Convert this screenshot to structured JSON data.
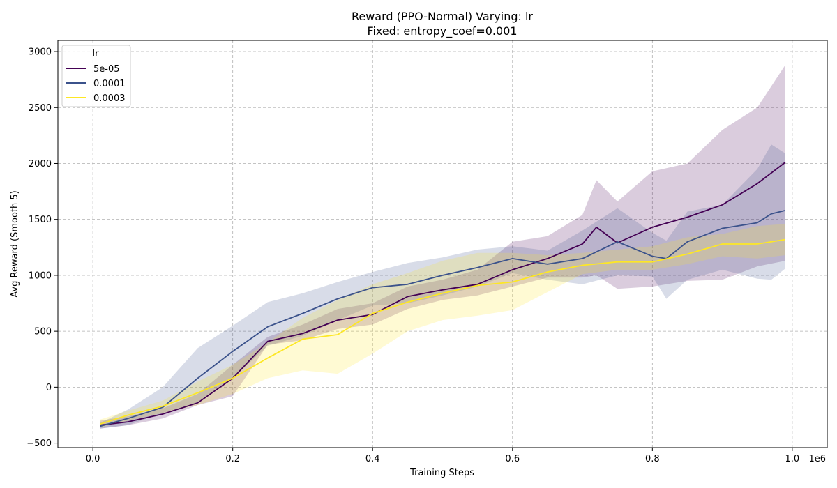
{
  "chart_data": {
    "type": "line",
    "title": "Reward (PPO-Normal) Varying: lr",
    "subtitle": "Fixed: entropy_coef=0.001",
    "xlabel": "Training Steps",
    "ylabel": "Avg Reward (Smooth 5)",
    "x_offset_label": "1e6",
    "xlim": [
      -0.05,
      1.05
    ],
    "ylim": [
      -540,
      3100
    ],
    "xticks": [
      0.0,
      0.2,
      0.4,
      0.6,
      0.8,
      1.0
    ],
    "xtick_labels": [
      "0.0",
      "0.2",
      "0.4",
      "0.6",
      "0.8",
      "1.0"
    ],
    "yticks": [
      -500,
      0,
      500,
      1000,
      1500,
      2000,
      2500,
      3000
    ],
    "ytick_labels": [
      "−500",
      "0",
      "500",
      "1000",
      "1500",
      "2000",
      "2500",
      "3000"
    ],
    "grid": true,
    "legend": {
      "title": "lr",
      "position": "top-left"
    },
    "series": [
      {
        "name": "5e-05",
        "color": "#440154",
        "x": [
          0.01,
          0.05,
          0.1,
          0.15,
          0.2,
          0.25,
          0.3,
          0.35,
          0.4,
          0.45,
          0.5,
          0.55,
          0.6,
          0.65,
          0.7,
          0.72,
          0.75,
          0.8,
          0.85,
          0.9,
          0.95,
          0.99
        ],
        "y": [
          -340,
          -310,
          -240,
          -140,
          80,
          410,
          480,
          600,
          650,
          810,
          870,
          920,
          1050,
          1150,
          1280,
          1430,
          1290,
          1430,
          1520,
          1630,
          1820,
          2010
        ],
        "upper": [
          -300,
          -260,
          -190,
          -60,
          200,
          450,
          560,
          700,
          750,
          900,
          960,
          1050,
          1300,
          1350,
          1540,
          1850,
          1660,
          1930,
          2000,
          2300,
          2500,
          2880
        ],
        "lower": [
          -370,
          -340,
          -280,
          -160,
          -80,
          380,
          420,
          520,
          560,
          700,
          780,
          820,
          900,
          980,
          980,
          1000,
          880,
          900,
          950,
          960,
          1080,
          1130
        ]
      },
      {
        "name": "0.0001",
        "color": "#3b528b",
        "x": [
          0.01,
          0.05,
          0.1,
          0.15,
          0.2,
          0.25,
          0.3,
          0.35,
          0.4,
          0.45,
          0.5,
          0.55,
          0.6,
          0.65,
          0.7,
          0.75,
          0.8,
          0.82,
          0.85,
          0.9,
          0.95,
          0.97,
          0.99
        ],
        "y": [
          -350,
          -280,
          -180,
          80,
          320,
          540,
          660,
          790,
          890,
          920,
          1000,
          1070,
          1150,
          1100,
          1150,
          1300,
          1170,
          1150,
          1300,
          1420,
          1470,
          1550,
          1580
        ],
        "upper": [
          -320,
          -200,
          0,
          350,
          550,
          760,
          840,
          940,
          1030,
          1110,
          1160,
          1230,
          1260,
          1220,
          1400,
          1600,
          1380,
          1310,
          1570,
          1630,
          1950,
          2170,
          2090
        ],
        "lower": [
          -370,
          -340,
          -230,
          -140,
          80,
          370,
          460,
          600,
          730,
          750,
          820,
          900,
          1020,
          960,
          920,
          1000,
          990,
          790,
          960,
          1050,
          970,
          960,
          1060
        ]
      },
      {
        "name": "0.0003",
        "color": "#fde725",
        "x": [
          0.01,
          0.05,
          0.1,
          0.15,
          0.2,
          0.25,
          0.3,
          0.35,
          0.4,
          0.45,
          0.5,
          0.55,
          0.6,
          0.65,
          0.7,
          0.75,
          0.8,
          0.85,
          0.9,
          0.95,
          0.99
        ],
        "y": [
          -330,
          -250,
          -170,
          -50,
          80,
          260,
          430,
          470,
          660,
          760,
          840,
          910,
          940,
          1030,
          1090,
          1120,
          1120,
          1190,
          1280,
          1280,
          1320
        ],
        "upper": [
          -290,
          -210,
          -120,
          50,
          200,
          400,
          620,
          780,
          920,
          1020,
          1130,
          1200,
          1200,
          1180,
          1200,
          1230,
          1260,
          1340,
          1370,
          1440,
          1460
        ],
        "lower": [
          -360,
          -300,
          -230,
          -160,
          -60,
          80,
          150,
          120,
          300,
          500,
          600,
          640,
          690,
          850,
          1010,
          1050,
          1050,
          1100,
          1170,
          1150,
          1180
        ]
      }
    ]
  }
}
